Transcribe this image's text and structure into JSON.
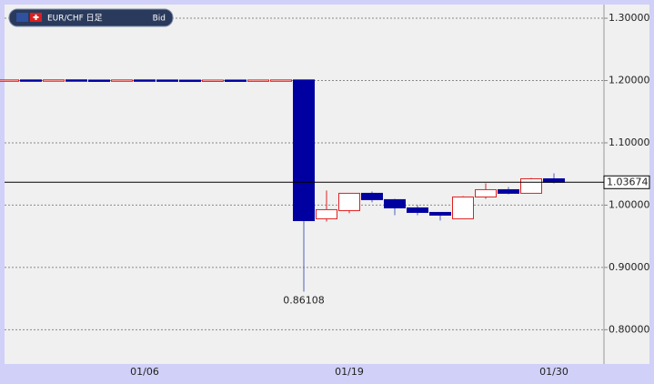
{
  "chart_data": {
    "type": "candlestick",
    "title": "EUR/CHF 日足",
    "price_type": "Bid",
    "categories": [
      null,
      null,
      null,
      null,
      null,
      null,
      "01/06",
      null,
      null,
      null,
      null,
      null,
      null,
      null,
      null,
      "01/19",
      null,
      null,
      null,
      null,
      null,
      null,
      null,
      null,
      "01/30"
    ],
    "open": [
      1.2003,
      1.201,
      1.2007,
      1.2011,
      1.2008,
      1.2006,
      1.201,
      1.2009,
      1.2007,
      1.2006,
      1.2008,
      1.2007,
      1.2009,
      1.201,
      0.9781,
      0.9912,
      1.019,
      1.0088,
      0.9956,
      0.9883,
      0.9781,
      1.0131,
      1.0248,
      1.019,
      1.0423
    ],
    "high": [
      1.2012,
      1.2013,
      1.2012,
      1.2013,
      1.2011,
      1.201,
      1.2012,
      1.2011,
      1.201,
      1.2009,
      1.2011,
      1.201,
      1.2012,
      1.2012,
      1.0234,
      1.019,
      1.0219,
      1.0102,
      1.0,
      0.9883,
      1.0146,
      1.035,
      1.0292,
      1.0438,
      1.0511
    ],
    "low": [
      1.2,
      1.2005,
      1.2004,
      1.2006,
      1.2005,
      1.2003,
      1.2005,
      1.2004,
      1.2003,
      1.2003,
      1.2004,
      1.2004,
      1.2005,
      0.86108,
      0.9737,
      0.9869,
      1.0044,
      0.9839,
      0.9839,
      0.9752,
      0.9781,
      1.0102,
      1.0175,
      1.019,
      1.035
    ],
    "close": [
      1.201,
      1.2007,
      1.2011,
      1.2008,
      1.2006,
      1.201,
      1.2009,
      1.2007,
      1.2006,
      1.2008,
      1.2007,
      1.2009,
      1.201,
      0.9751,
      0.9927,
      1.019,
      1.0088,
      0.9956,
      0.9883,
      0.9839,
      1.0131,
      1.0248,
      1.019,
      1.0423,
      1.03674
    ],
    "up_color": "#e02020",
    "down_color": "#0000a0",
    "ylim": [
      0.745,
      1.322
    ],
    "yticks": [
      {
        "value": 0.8,
        "label": "0.80000"
      },
      {
        "value": 0.9,
        "label": "0.90000"
      },
      {
        "value": 1.0,
        "label": "1.00000"
      },
      {
        "value": 1.1,
        "label": "1.10000"
      },
      {
        "value": 1.2,
        "label": "1.20000"
      },
      {
        "value": 1.3,
        "label": "1.30000"
      }
    ],
    "grid": true
  }
}
